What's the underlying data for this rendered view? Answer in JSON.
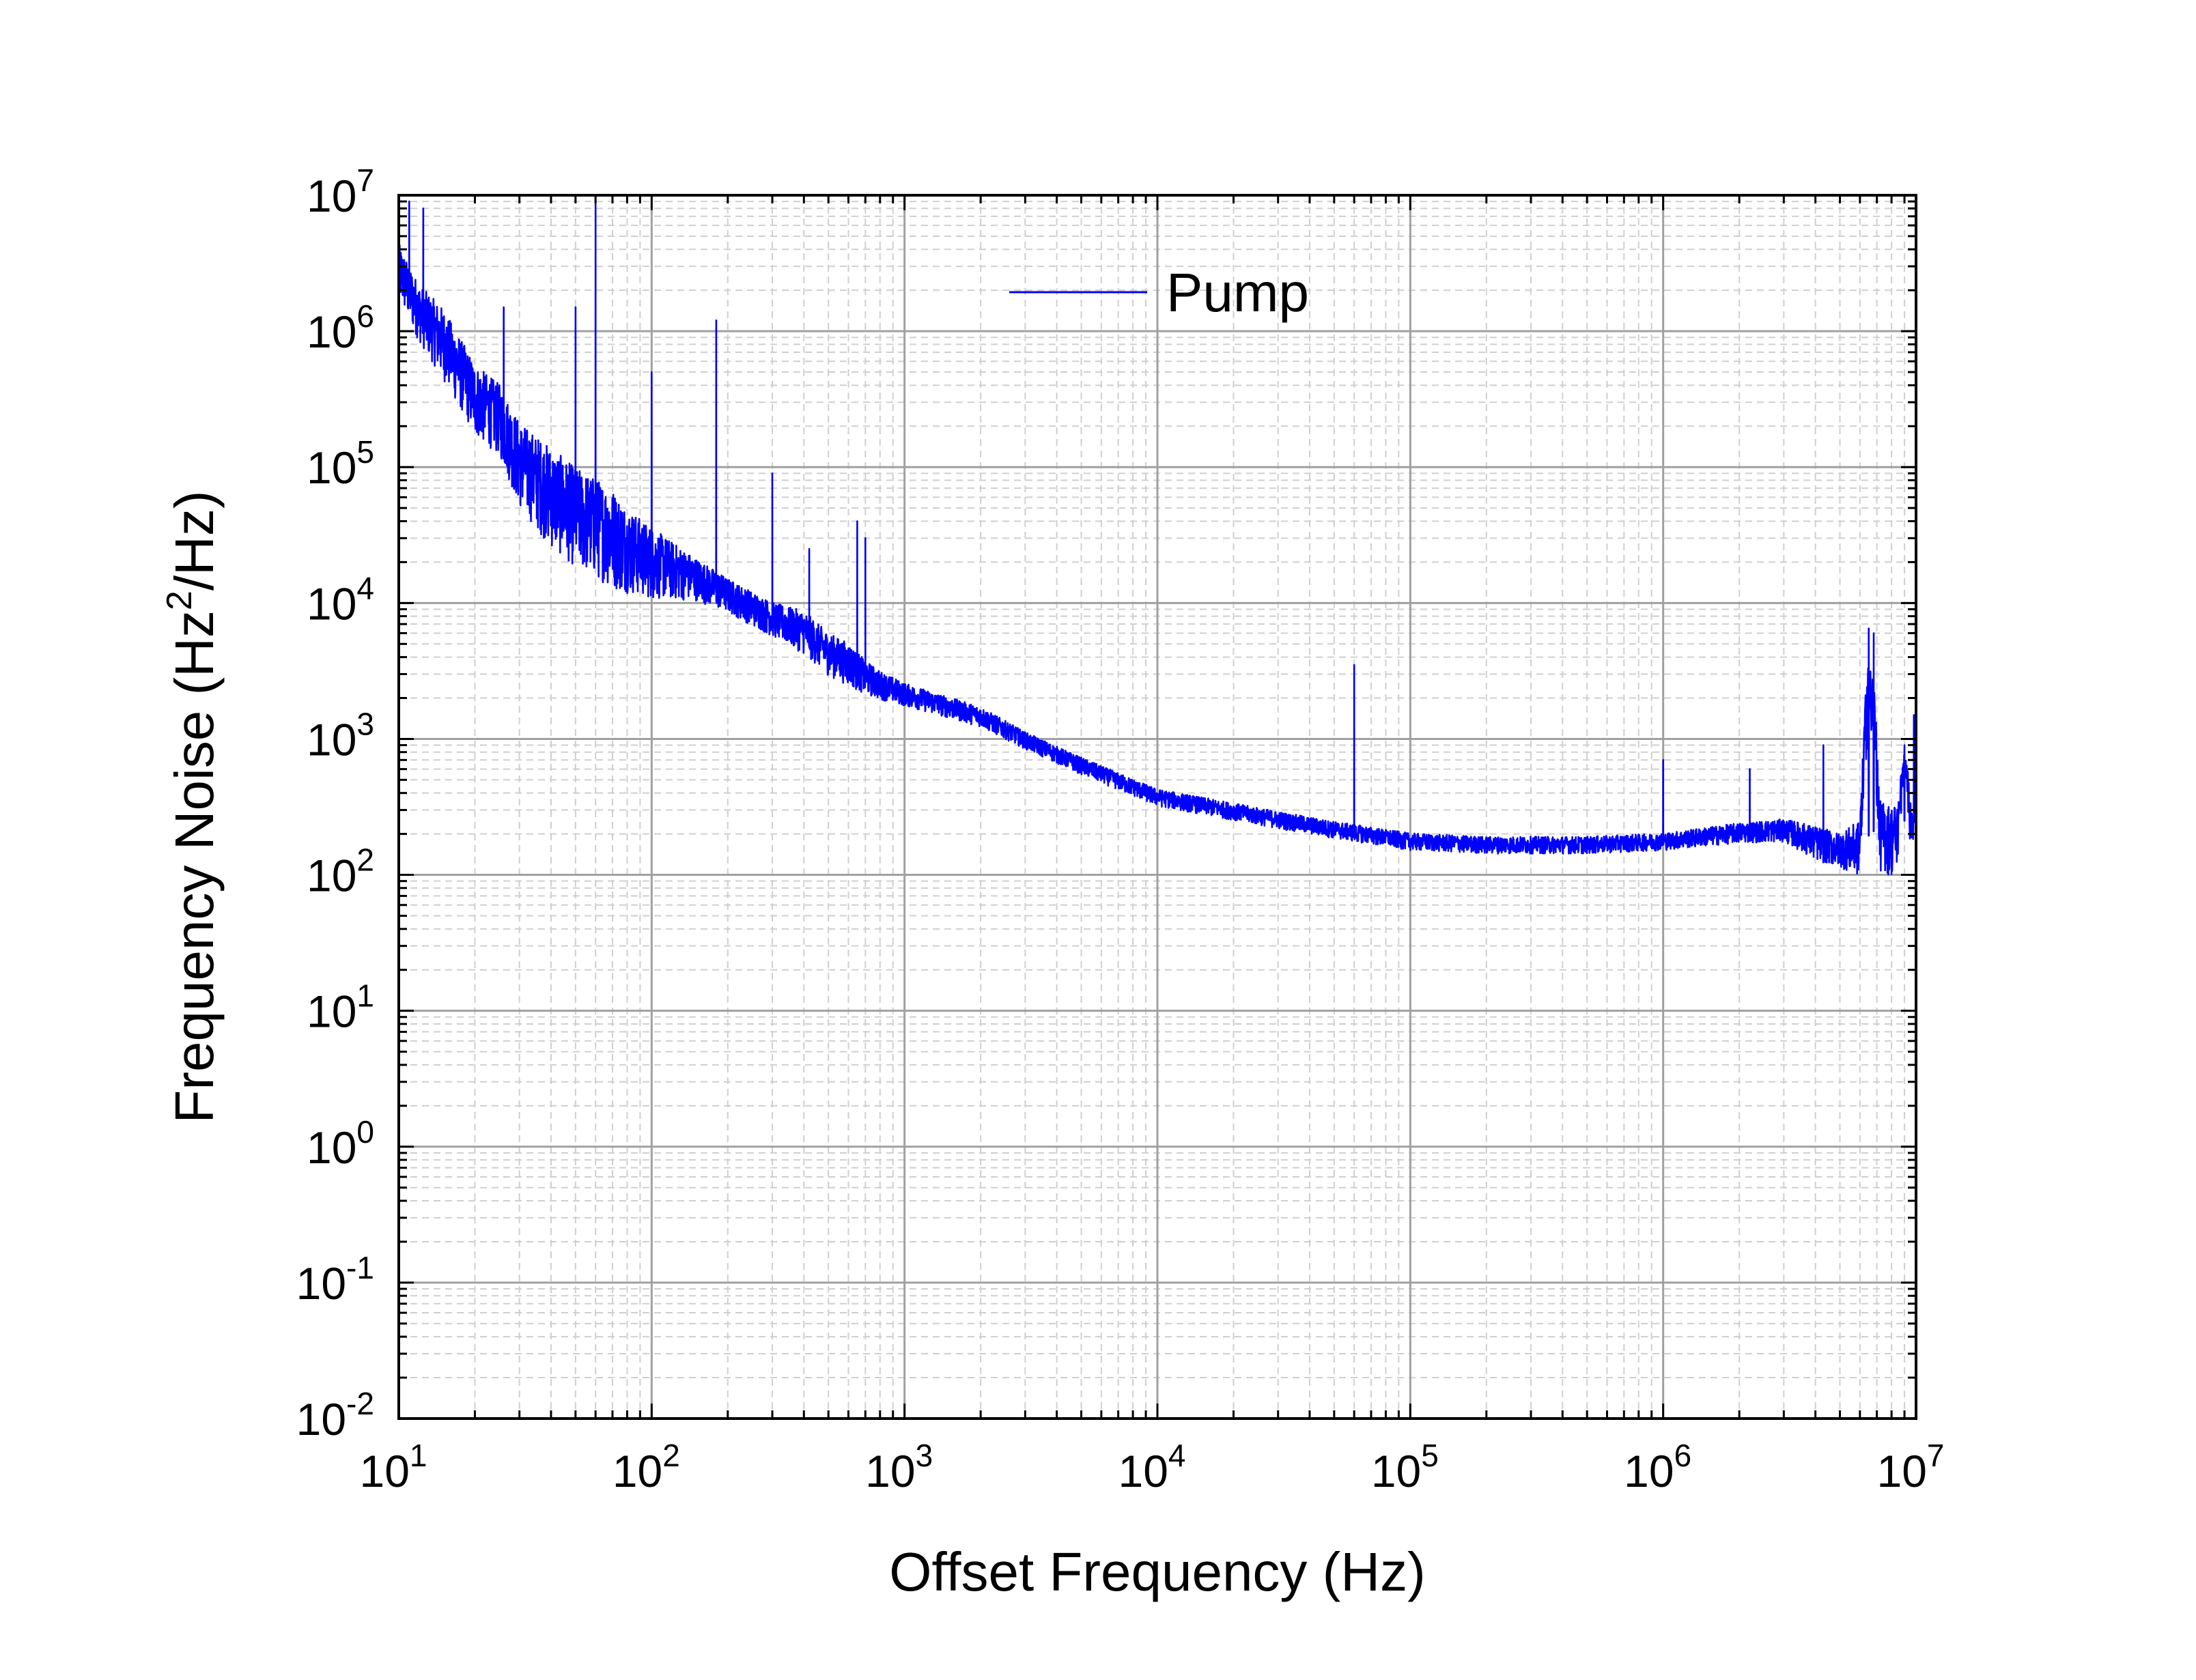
{
  "chart_data": {
    "type": "line",
    "title": "",
    "xlabel": "Offset Frequency (Hz)",
    "ylabel_main": "Frequency Noise (Hz",
    "ylabel_superscript": "2",
    "ylabel_tail": "/Hz)",
    "x_scale": "log",
    "y_scale": "log",
    "xlim": [
      10,
      10000000
    ],
    "ylim": [
      0.01,
      10000000
    ],
    "grid": true,
    "legend_position": "top-center",
    "x_ticks": [
      {
        "base": "10",
        "exp": "1"
      },
      {
        "base": "10",
        "exp": "2"
      },
      {
        "base": "10",
        "exp": "3"
      },
      {
        "base": "10",
        "exp": "4"
      },
      {
        "base": "10",
        "exp": "5"
      },
      {
        "base": "10",
        "exp": "6"
      },
      {
        "base": "10",
        "exp": "7"
      }
    ],
    "y_ticks": [
      {
        "base": "10",
        "exp": "-2"
      },
      {
        "base": "10",
        "exp": "-1"
      },
      {
        "base": "10",
        "exp": "0"
      },
      {
        "base": "10",
        "exp": "1"
      },
      {
        "base": "10",
        "exp": "2"
      },
      {
        "base": "10",
        "exp": "3"
      },
      {
        "base": "10",
        "exp": "4"
      },
      {
        "base": "10",
        "exp": "5"
      },
      {
        "base": "10",
        "exp": "6"
      },
      {
        "base": "10",
        "exp": "7"
      }
    ],
    "series": [
      {
        "name": "Pump",
        "color": "#0000ff",
        "trend": {
          "x": [
            10,
            12,
            15,
            18,
            20,
            25,
            30,
            40,
            50,
            60,
            70,
            80,
            100,
            150,
            200,
            300,
            400,
            500,
            600,
            700,
            800,
            1000,
            2000,
            3000,
            5000,
            7000,
            10000,
            20000,
            30000,
            50000,
            100000,
            200000,
            300000,
            500000,
            1000000,
            2000000,
            3000000,
            3500000,
            4000000,
            5000000,
            6000000,
            7000000,
            8000000,
            9000000,
            10000000
          ],
          "y": [
            3000000,
            1500000,
            900000,
            500000,
            350000,
            250000,
            120000,
            70000,
            50000,
            42000,
            35000,
            28000,
            22000,
            16000,
            12000,
            8000,
            6500,
            4500,
            3800,
            3000,
            2600,
            2200,
            1500,
            1000,
            650,
            500,
            380,
            300,
            260,
            220,
            180,
            170,
            170,
            170,
            180,
            210,
            220,
            200,
            180,
            160,
            170,
            220,
            200,
            250,
            300
          ],
          "noise_dex": [
            0.2,
            0.2,
            0.25,
            0.25,
            0.25,
            0.25,
            0.3,
            0.35,
            0.35,
            0.35,
            0.35,
            0.3,
            0.25,
            0.15,
            0.12,
            0.12,
            0.15,
            0.15,
            0.15,
            0.12,
            0.1,
            0.08,
            0.07,
            0.06,
            0.06,
            0.06,
            0.06,
            0.06,
            0.06,
            0.06,
            0.06,
            0.06,
            0.06,
            0.06,
            0.06,
            0.07,
            0.08,
            0.1,
            0.12,
            0.12,
            0.2,
            0.25,
            0.25,
            0.2,
            0.15
          ]
        },
        "peaks": [
          {
            "x": 11,
            "y": 9000000
          },
          {
            "x": 12.5,
            "y": 8000000
          },
          {
            "x": 26,
            "y": 1500000
          },
          {
            "x": 50,
            "y": 1500000
          },
          {
            "x": 60,
            "y": 10000000
          },
          {
            "x": 100,
            "y": 500000
          },
          {
            "x": 180,
            "y": 1200000
          },
          {
            "x": 300,
            "y": 90000
          },
          {
            "x": 420,
            "y": 25000
          },
          {
            "x": 650,
            "y": 40000
          },
          {
            "x": 700,
            "y": 30000
          },
          {
            "x": 60000,
            "y": 3500
          },
          {
            "x": 1000000,
            "y": 700
          },
          {
            "x": 2200000,
            "y": 600
          },
          {
            "x": 4300000,
            "y": 900
          },
          {
            "x": 6500000,
            "y": 6500
          },
          {
            "x": 6800000,
            "y": 6000
          },
          {
            "x": 9000000,
            "y": 900
          },
          {
            "x": 9800000,
            "y": 1500
          }
        ],
        "broad_bumps": [
          {
            "x_from": 6000000,
            "x_to": 7200000,
            "y": 5000
          },
          {
            "x_from": 8500000,
            "x_to": 9500000,
            "y": 800
          }
        ]
      }
    ]
  }
}
